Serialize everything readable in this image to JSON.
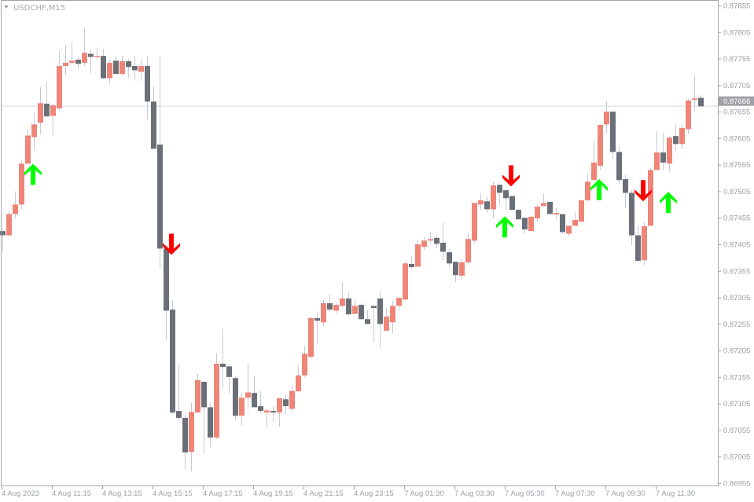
{
  "chart_data": {
    "type": "candlestick",
    "title": "USDCHF,M15",
    "symbol": "USDCHF",
    "timeframe": "M15",
    "ylim": [
      0.86955,
      0.87855
    ],
    "y_ticks": [
      "0.87855",
      "0.87805",
      "0.87755",
      "0.87705",
      "0.87655",
      "0.87605",
      "0.87555",
      "0.87505",
      "0.87455",
      "0.87405",
      "0.87355",
      "0.87305",
      "0.87255",
      "0.87205",
      "0.87155",
      "0.87105",
      "0.87055",
      "0.87005",
      "0.86955"
    ],
    "x_labels": [
      {
        "label": "4 Aug 2023",
        "candle": 0
      },
      {
        "label": "4 Aug 11:15",
        "candle": 8
      },
      {
        "label": "4 Aug 13:15",
        "candle": 16
      },
      {
        "label": "4 Aug 15:15",
        "candle": 24
      },
      {
        "label": "4 Aug 17:15",
        "candle": 32
      },
      {
        "label": "4 Aug 19:15",
        "candle": 40
      },
      {
        "label": "4 Aug 21:15",
        "candle": 48
      },
      {
        "label": "4 Aug 23:15",
        "candle": 56
      },
      {
        "label": "7 Aug 01:30",
        "candle": 64
      },
      {
        "label": "7 Aug 03:30",
        "candle": 72
      },
      {
        "label": "7 Aug 05:30",
        "candle": 80
      },
      {
        "label": "7 Aug 07:30",
        "candle": 88
      },
      {
        "label": "7 Aug 09:30",
        "candle": 96
      },
      {
        "label": "7 Aug 11:30",
        "candle": 104
      }
    ],
    "current_price": "0.87666",
    "colors": {
      "bull": "#ee8577",
      "bear": "#6b7078",
      "wick": "#c5cad5",
      "grid_line": "#d5d9e0",
      "axis": "#a0a4aa",
      "price_label_bg": "#9ea2a8",
      "signal_up": "#00ff00",
      "signal_down": "#ff0000"
    },
    "ohlc_order": [
      "open",
      "high",
      "low",
      "close"
    ],
    "candles": [
      [
        0.8743,
        0.87433,
        0.87391,
        0.87422
      ],
      [
        0.87422,
        0.87467,
        0.8742,
        0.87462
      ],
      [
        0.87462,
        0.87505,
        0.87454,
        0.8748
      ],
      [
        0.8748,
        0.87562,
        0.87471,
        0.87557
      ],
      [
        0.87557,
        0.87622,
        0.87557,
        0.8761
      ],
      [
        0.87607,
        0.87652,
        0.87582,
        0.87631
      ],
      [
        0.87634,
        0.87701,
        0.87612,
        0.87671
      ],
      [
        0.8767,
        0.87711,
        0.87646,
        0.87646
      ],
      [
        0.87647,
        0.8767,
        0.8761,
        0.87667
      ],
      [
        0.87661,
        0.87769,
        0.87658,
        0.87741
      ],
      [
        0.87741,
        0.87781,
        0.87724,
        0.87747
      ],
      [
        0.87747,
        0.87787,
        0.87745,
        0.87751
      ],
      [
        0.87753,
        0.87757,
        0.87736,
        0.87745
      ],
      [
        0.87747,
        0.87813,
        0.87742,
        0.87766
      ],
      [
        0.87764,
        0.87772,
        0.87727,
        0.87758
      ],
      [
        0.87758,
        0.87776,
        0.87754,
        0.8776
      ],
      [
        0.8776,
        0.87773,
        0.87717,
        0.87718
      ],
      [
        0.87718,
        0.87753,
        0.87707,
        0.87747
      ],
      [
        0.87751,
        0.8776,
        0.87726,
        0.87726
      ],
      [
        0.87726,
        0.8776,
        0.87723,
        0.8775
      ],
      [
        0.8775,
        0.87754,
        0.87718,
        0.87739
      ],
      [
        0.87741,
        0.8776,
        0.87714,
        0.87733
      ],
      [
        0.8773,
        0.87754,
        0.87713,
        0.87741
      ],
      [
        0.87741,
        0.8776,
        0.8764,
        0.87674
      ],
      [
        0.87674,
        0.87702,
        0.87585,
        0.87585
      ],
      [
        0.87593,
        0.8776,
        0.87359,
        0.87397
      ],
      [
        0.87397,
        0.87397,
        0.87226,
        0.8728
      ],
      [
        0.87282,
        0.873,
        0.87085,
        0.87088
      ],
      [
        0.87091,
        0.8718,
        0.87073,
        0.87078
      ],
      [
        0.87078,
        0.87085,
        0.86981,
        0.87013
      ],
      [
        0.87014,
        0.87106,
        0.86977,
        0.87089
      ],
      [
        0.87088,
        0.87161,
        0.87088,
        0.87149
      ],
      [
        0.87146,
        0.87146,
        0.87011,
        0.87098
      ],
      [
        0.87098,
        0.87107,
        0.87023,
        0.87041
      ],
      [
        0.87041,
        0.872,
        0.87038,
        0.8718
      ],
      [
        0.8718,
        0.87245,
        0.87134,
        0.87174
      ],
      [
        0.87175,
        0.87178,
        0.87124,
        0.87155
      ],
      [
        0.87153,
        0.87158,
        0.87073,
        0.87082
      ],
      [
        0.87082,
        0.87125,
        0.87064,
        0.87116
      ],
      [
        0.87116,
        0.87181,
        0.87094,
        0.87126
      ],
      [
        0.87125,
        0.87158,
        0.87098,
        0.87098
      ],
      [
        0.871,
        0.87129,
        0.87087,
        0.87091
      ],
      [
        0.87088,
        0.87095,
        0.87061,
        0.87092
      ],
      [
        0.87091,
        0.871,
        0.87072,
        0.87088
      ],
      [
        0.87088,
        0.87115,
        0.87061,
        0.87115
      ],
      [
        0.87113,
        0.87122,
        0.87084,
        0.871
      ],
      [
        0.87095,
        0.87138,
        0.87088,
        0.87129
      ],
      [
        0.87128,
        0.87178,
        0.87128,
        0.87158
      ],
      [
        0.87158,
        0.87214,
        0.87155,
        0.87199
      ],
      [
        0.87193,
        0.87269,
        0.87189,
        0.87266
      ],
      [
        0.87266,
        0.87277,
        0.87218,
        0.87261
      ],
      [
        0.87258,
        0.873,
        0.87251,
        0.87294
      ],
      [
        0.87294,
        0.87311,
        0.87277,
        0.87282
      ],
      [
        0.8728,
        0.87295,
        0.87274,
        0.87291
      ],
      [
        0.87289,
        0.87334,
        0.87286,
        0.87303
      ],
      [
        0.87303,
        0.87314,
        0.87272,
        0.87273
      ],
      [
        0.87274,
        0.873,
        0.87273,
        0.87289
      ],
      [
        0.87291,
        0.87294,
        0.87263,
        0.87264
      ],
      [
        0.87264,
        0.87282,
        0.87254,
        0.87255
      ],
      [
        0.87289,
        0.87289,
        0.87221,
        0.87285
      ],
      [
        0.87303,
        0.87316,
        0.87209,
        0.87255
      ],
      [
        0.87242,
        0.87285,
        0.87242,
        0.87269
      ],
      [
        0.87258,
        0.87298,
        0.87237,
        0.87289
      ],
      [
        0.87289,
        0.87306,
        0.8728,
        0.87304
      ],
      [
        0.87301,
        0.87372,
        0.87301,
        0.87369
      ],
      [
        0.87368,
        0.87383,
        0.87359,
        0.87362
      ],
      [
        0.87363,
        0.87414,
        0.87362,
        0.87405
      ],
      [
        0.874,
        0.8742,
        0.87394,
        0.87412
      ],
      [
        0.87412,
        0.87428,
        0.87408,
        0.87415
      ],
      [
        0.87417,
        0.87422,
        0.87397,
        0.87406
      ],
      [
        0.87408,
        0.87446,
        0.87375,
        0.87391
      ],
      [
        0.8739,
        0.87396,
        0.87362,
        0.87369
      ],
      [
        0.87372,
        0.87372,
        0.87334,
        0.87347
      ],
      [
        0.87346,
        0.87377,
        0.87338,
        0.87371
      ],
      [
        0.87371,
        0.87425,
        0.87366,
        0.87415
      ],
      [
        0.87412,
        0.87483,
        0.87406,
        0.87483
      ],
      [
        0.8748,
        0.87501,
        0.8747,
        0.87488
      ],
      [
        0.87486,
        0.87494,
        0.87464,
        0.87471
      ],
      [
        0.87471,
        0.87523,
        0.87454,
        0.87516
      ],
      [
        0.87517,
        0.87519,
        0.8748,
        0.87502
      ],
      [
        0.87507,
        0.87507,
        0.87471,
        0.87492
      ],
      [
        0.87496,
        0.87496,
        0.8747,
        0.8747
      ],
      [
        0.8747,
        0.8747,
        0.87452,
        0.87452
      ],
      [
        0.87455,
        0.87455,
        0.87425,
        0.87433
      ],
      [
        0.8743,
        0.87459,
        0.8743,
        0.87457
      ],
      [
        0.87454,
        0.87479,
        0.87448,
        0.87476
      ],
      [
        0.87477,
        0.87501,
        0.87477,
        0.87483
      ],
      [
        0.87485,
        0.87485,
        0.87462,
        0.87462
      ],
      [
        0.87461,
        0.87473,
        0.87451,
        0.87464
      ],
      [
        0.87462,
        0.87462,
        0.87425,
        0.87428
      ],
      [
        0.87425,
        0.8744,
        0.87421,
        0.8744
      ],
      [
        0.8744,
        0.87467,
        0.87439,
        0.87451
      ],
      [
        0.87448,
        0.87488,
        0.87446,
        0.87488
      ],
      [
        0.87488,
        0.87539,
        0.87486,
        0.87523
      ],
      [
        0.87526,
        0.876,
        0.87526,
        0.87559
      ],
      [
        0.87553,
        0.8763,
        0.87545,
        0.8763
      ],
      [
        0.87631,
        0.87674,
        0.87615,
        0.87655
      ],
      [
        0.87655,
        0.87655,
        0.87566,
        0.87579
      ],
      [
        0.87579,
        0.8759,
        0.87519,
        0.87526
      ],
      [
        0.87528,
        0.87536,
        0.87474,
        0.87502
      ],
      [
        0.87502,
        0.87507,
        0.87403,
        0.87422
      ],
      [
        0.87422,
        0.8744,
        0.87372,
        0.87374
      ],
      [
        0.87375,
        0.87446,
        0.87366,
        0.87439
      ],
      [
        0.8744,
        0.8755,
        0.8744,
        0.87545
      ],
      [
        0.87545,
        0.87618,
        0.87545,
        0.87578
      ],
      [
        0.87578,
        0.87615,
        0.87545,
        0.87559
      ],
      [
        0.87557,
        0.8761,
        0.87542,
        0.87606
      ],
      [
        0.87609,
        0.8763,
        0.87582,
        0.87594
      ],
      [
        0.87594,
        0.8763,
        0.87585,
        0.87624
      ],
      [
        0.87622,
        0.87679,
        0.87612,
        0.87676
      ],
      [
        0.87677,
        0.87723,
        0.87655,
        0.8768
      ],
      [
        0.87681,
        0.87687,
        0.87665,
        0.87665
      ]
    ],
    "signals": [
      {
        "type": "buy",
        "icon": "arrow-up-icon",
        "candle": 5,
        "price": 0.87557
      },
      {
        "type": "sell",
        "icon": "arrow-down-icon",
        "candle": 27,
        "price": 0.87385
      },
      {
        "type": "buy",
        "icon": "arrow-up-icon",
        "candle": 80,
        "price": 0.87458
      },
      {
        "type": "sell",
        "icon": "arrow-down-icon",
        "candle": 81,
        "price": 0.87514
      },
      {
        "type": "buy",
        "icon": "arrow-up-icon",
        "candle": 95,
        "price": 0.87528
      },
      {
        "type": "sell",
        "icon": "arrow-down-icon",
        "candle": 102,
        "price": 0.87486
      },
      {
        "type": "buy",
        "icon": "arrow-up-icon",
        "candle": 106,
        "price": 0.87504
      }
    ]
  }
}
